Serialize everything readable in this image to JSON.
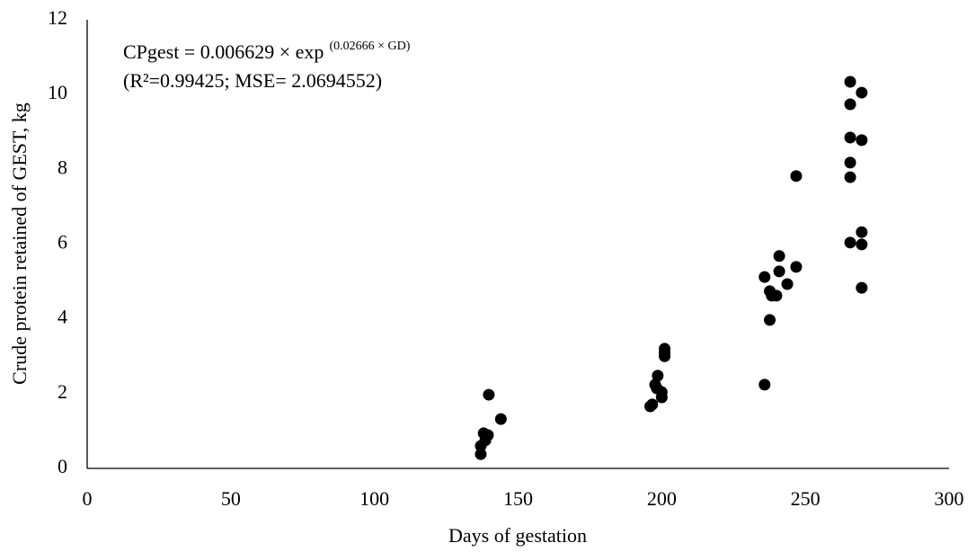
{
  "chart_data": {
    "type": "scatter",
    "xlabel": "Days of gestation",
    "ylabel": "Crude protein retained of GEST, kg",
    "annotations": [
      {
        "text": "CPgest = 0.006629 × exp",
        "superscript": "(0.02666 × GD)"
      },
      {
        "text": "(R²=0.99425; MSE= 2.0694552)"
      }
    ],
    "color": "#000000",
    "x": [
      137,
      137,
      138,
      138.6,
      139.5,
      139.8,
      144,
      196,
      196.7,
      197.7,
      198.6,
      198.3,
      200,
      200,
      201,
      201,
      201,
      235.8,
      235.8,
      237.6,
      237.6,
      238.3,
      239.9,
      240.9,
      240.9,
      243.7,
      246.8,
      246.8,
      265.6,
      265.6,
      265.6,
      265.6,
      265.6,
      265.6,
      269.6,
      269.6,
      269.6,
      269.6,
      269.6
    ],
    "values": [
      0.38,
      0.6,
      0.94,
      0.75,
      0.89,
      1.97,
      1.32,
      1.66,
      1.71,
      2.24,
      2.48,
      2.14,
      2.04,
      1.9,
      3.0,
      3.1,
      3.2,
      2.24,
      5.12,
      3.97,
      4.74,
      4.62,
      4.62,
      5.68,
      5.27,
      4.93,
      5.39,
      7.82,
      10.34,
      9.74,
      8.85,
      8.18,
      7.79,
      6.04,
      10.05,
      8.78,
      6.32,
      5.99,
      4.83
    ],
    "xlim": [
      0,
      300
    ],
    "xticks": [
      0,
      50,
      100,
      150,
      200,
      250,
      300
    ],
    "ylim": [
      0,
      12
    ],
    "yticks": [
      0,
      2,
      4,
      6,
      8,
      10,
      12
    ],
    "grid": false
  }
}
